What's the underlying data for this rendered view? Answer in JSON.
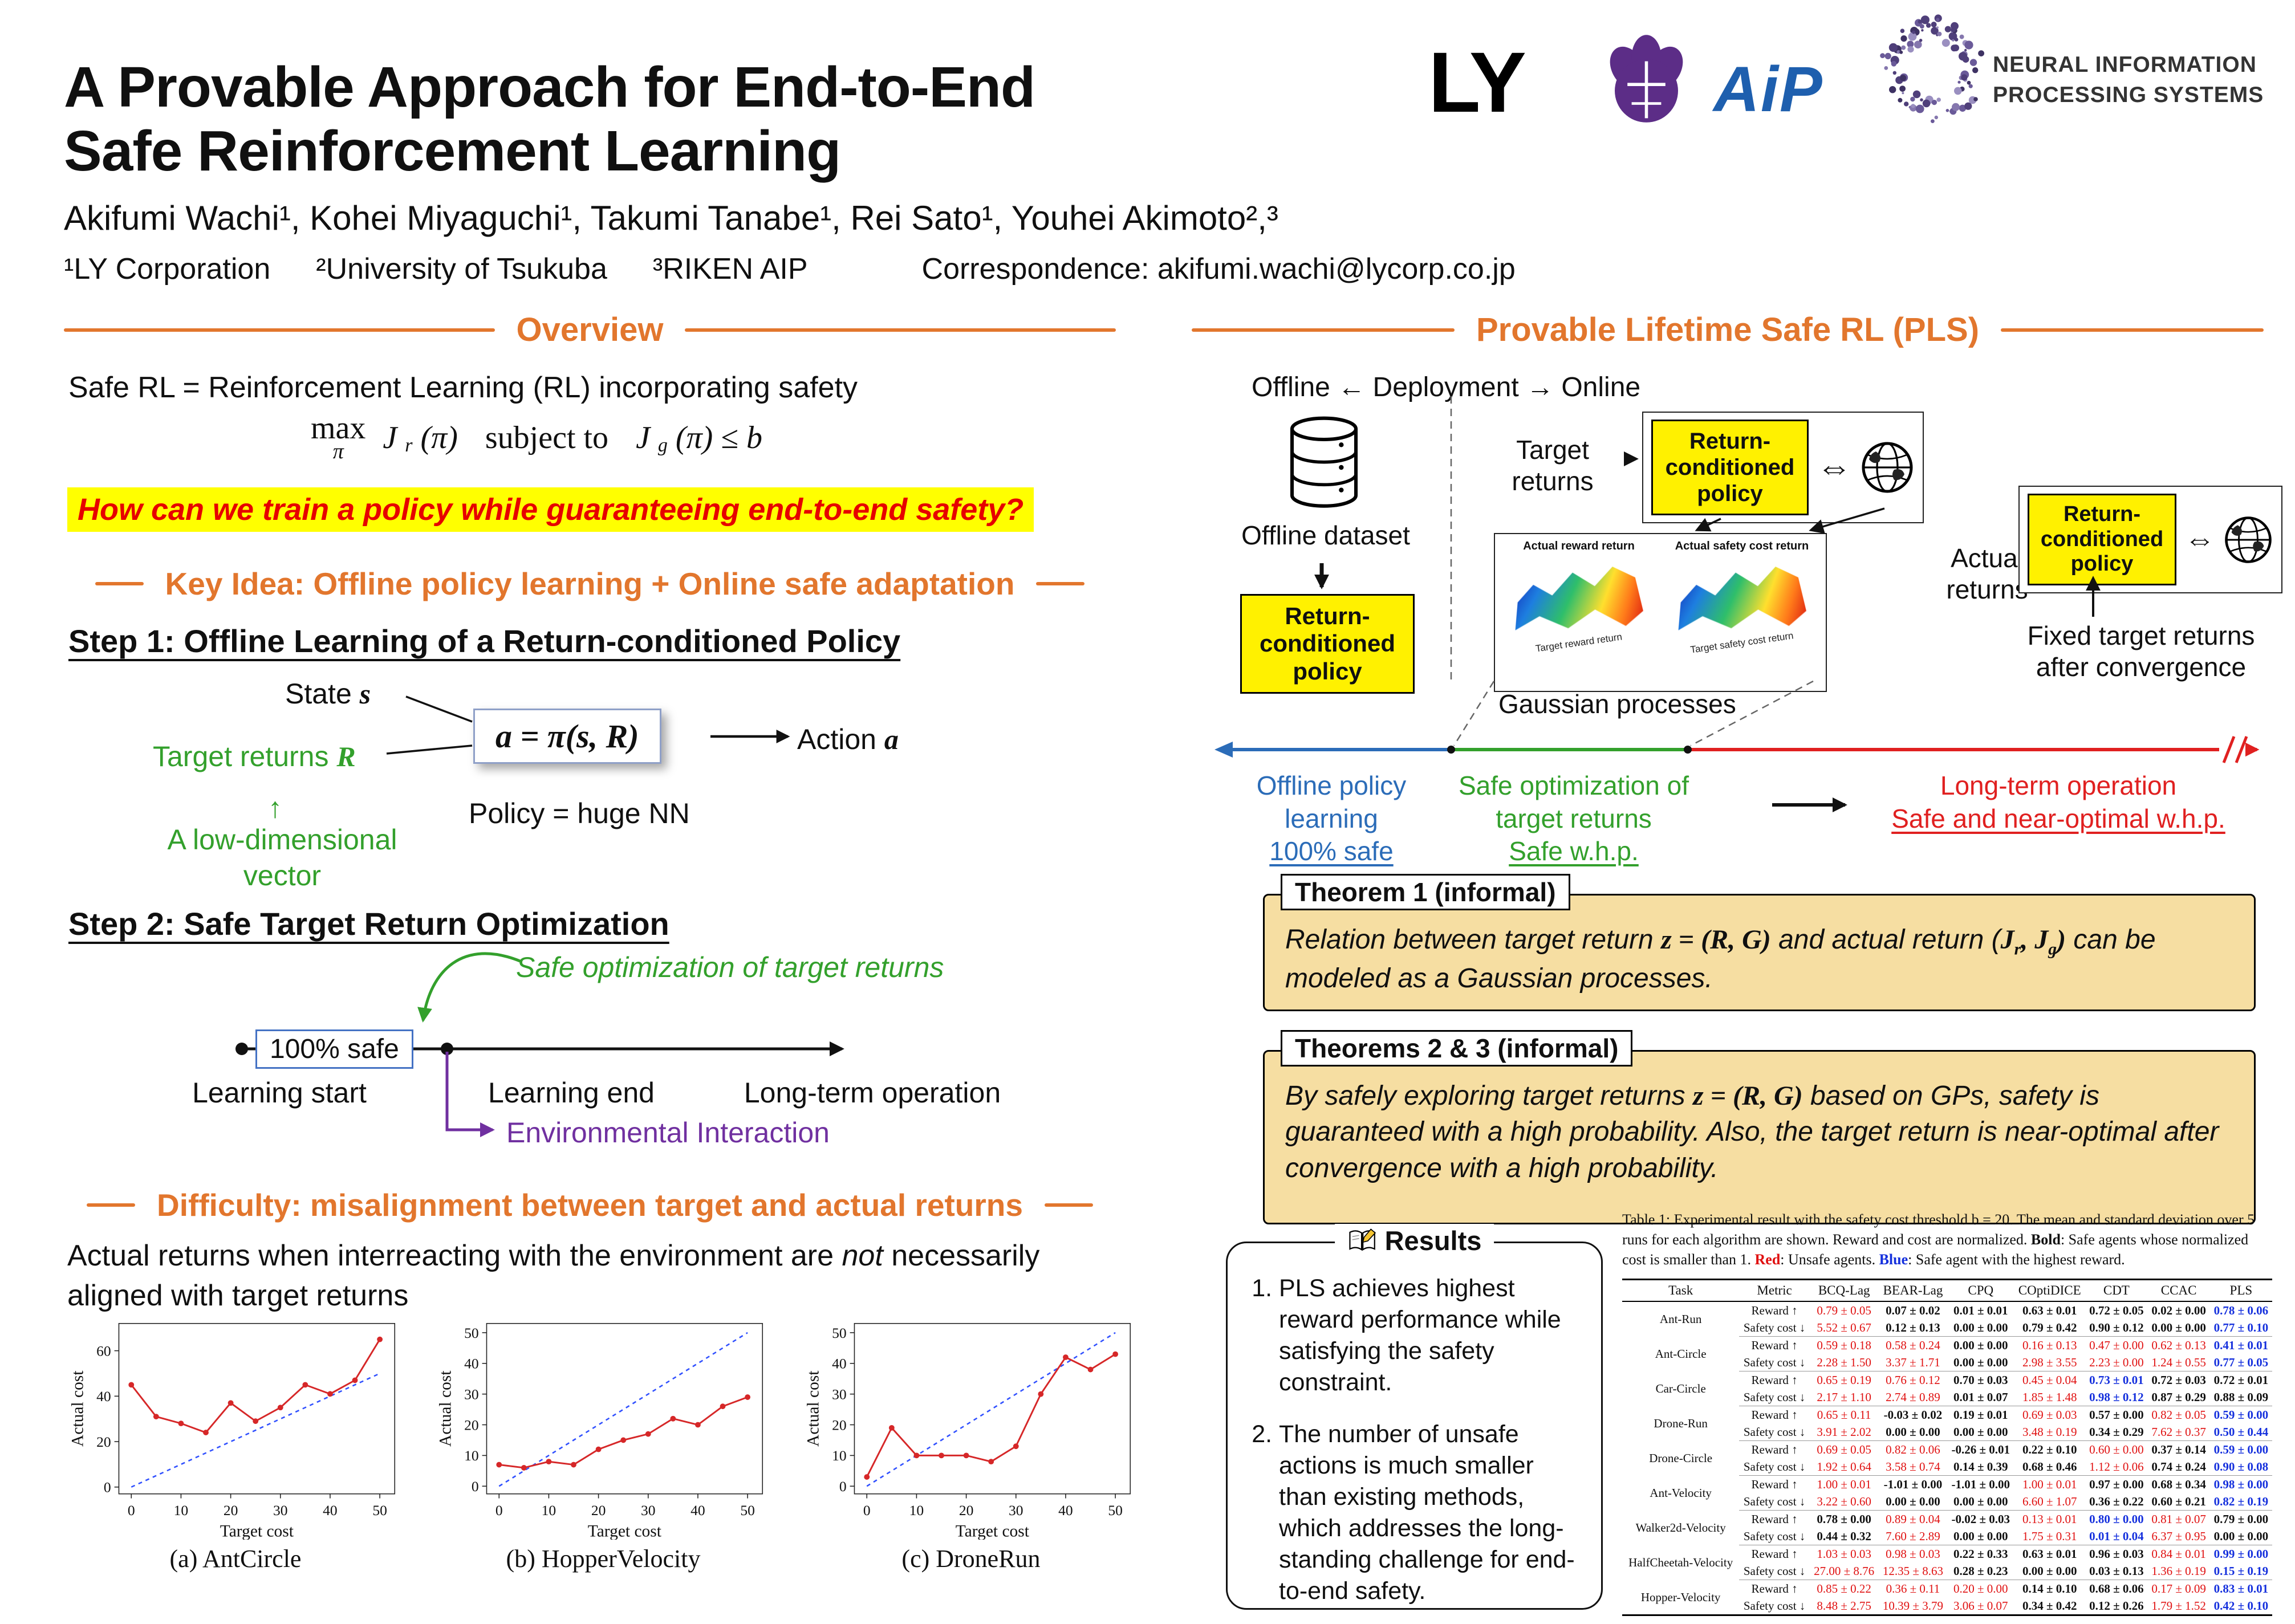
{
  "colors": {
    "orange": "#E2762D",
    "green": "#33A02C",
    "purple": "#7030A0",
    "blue": "#2B6CB8",
    "red": "#E02020",
    "highlight_bg": "#FFFF00",
    "theorem_bg": "#F6DEA2",
    "policy_box_bg": "#FFF100"
  },
  "header": {
    "title_line1": "A Provable Approach for End-to-End",
    "title_line2": "Safe Reinforcement Learning",
    "authors": "Akifumi Wachi¹, Kohei Miyaguchi¹, Takumi Tanabe¹, Rei Sato¹, Youhei Akimoto²,³",
    "affiliations": [
      "¹LY Corporation",
      "²University of Tsukuba",
      "³RIKEN AIP"
    ],
    "correspondence": "Correspondence: akifumi.wachi@lycorp.co.jp",
    "logos": {
      "ly": "LY",
      "aip": "AiP",
      "neurips_line1": "NEURAL INFORMATION",
      "neurips_line2": "PROCESSING SYSTEMS"
    }
  },
  "left": {
    "overview": {
      "heading": "Overview",
      "intro": "Safe RL = Reinforcement Learning (RL) incorporating safety",
      "math": {
        "op": "max",
        "op_sub": "π",
        "f1": "J",
        "f1_sub": "r",
        "f1_args": "(π)",
        "connective": "subject to",
        "f2": "J",
        "f2_sub": "g",
        "f2_args": "(π) ≤ b"
      },
      "question": "How can we train a policy  while guaranteeing end-to-end safety?"
    },
    "key_idea": "Key Idea: Offline policy learning + Online safe adaptation",
    "step1": {
      "heading": "Step 1: Offline Learning of a Return-conditioned Policy",
      "state": {
        "text": "State ",
        "sym": "s"
      },
      "target": {
        "text": "Target returns ",
        "sym": "R"
      },
      "box": "a = π(s, R)",
      "action": {
        "text": "Action ",
        "sym": "a"
      },
      "policy_note": "Policy = huge NN",
      "up_arrow": "↑",
      "low_dim": "A low-dimensional vector"
    },
    "step2": {
      "heading": "Step 2:  Safe Target Return Optimization",
      "safe_opt": "Safe optimization of target returns",
      "safe_box": "100% safe",
      "labels": [
        "Learning start",
        "Learning end",
        "Long-term operation"
      ],
      "env": "Environmental Interaction"
    },
    "difficulty": {
      "heading": "Difficulty: misalignment between target and actual returns",
      "para": [
        "Actual returns when interreacting with the environment are ",
        "not",
        " necessarily aligned with target returns"
      ]
    }
  },
  "right": {
    "heading": "Provable Lifetime Safe RL (PLS)",
    "deployment": "Offline ← Deployment → Online",
    "offline_dataset": "Offline dataset",
    "rc_policy": "Return-conditioned policy",
    "target_returns": "Target returns",
    "actual_returns": "Actual returns",
    "gp": {
      "label": "Gaussian processes",
      "plot1": "Actual reward return",
      "plot2": "Actual safety cost return",
      "axis1": "Target reward return",
      "axis2": "Target safety cost return"
    },
    "fixed": "Fixed target returns after convergence",
    "timeline": {
      "phase1": {
        "label": "Offline policy learning",
        "sub": "100% safe"
      },
      "phase2": {
        "label": "Safe optimization of target returns",
        "sub": "Safe w.h.p."
      },
      "phase3": {
        "label": "Long-term operation",
        "sub": "Safe and near-optimal w.h.p."
      }
    },
    "theorem1": {
      "title": "Theorem 1 (informal)",
      "body": [
        "Relation between target return ",
        "z = (R, G)",
        " and actual return (",
        "J",
        "r",
        ", J",
        "g",
        ")",
        " can be modeled as a Gaussian processes."
      ]
    },
    "theorems23": {
      "title": "Theorems 2 & 3 (informal)",
      "body": [
        "By safely exploring target returns ",
        "z = (R, G)",
        " based on GPs, safety is guaranteed with a high probability. Also, the target return is near-optimal after convergence with a high probability."
      ]
    },
    "results": {
      "title": "Results",
      "items": [
        "PLS achieves highest reward performance while satisfying the safety constraint.",
        "The number of unsafe actions is much smaller than existing methods, which addresses the long-standing challenge for end-to-end safety."
      ]
    },
    "table": {
      "caption": [
        "Table 1: Experimental result with the safety cost threshold b = 20. The mean and standard de­viation over 5 runs for each algorithm are shown. Reward and cost are normalized. ",
        "Bold",
        ": Safe agents whose normalized cost is smaller than 1. ",
        "Red",
        ": Unsafe agents. ",
        "Blue",
        ": Safe agent with the highest reward."
      ],
      "columns": [
        "Task",
        "Metric",
        "BCQ-Lag",
        "BEAR-Lag",
        "CPQ",
        "COptiDICE",
        "CDT",
        "CCAC",
        "PLS"
      ],
      "metric_labels": [
        "Reward ↑",
        "Safety cost ↓"
      ],
      "rows": [
        {
          "task": "Ant-Run",
          "reward": [
            [
              "0.79 ± 0.05",
              "red"
            ],
            [
              "0.07 ± 0.02",
              "bold"
            ],
            [
              "0.01 ± 0.01",
              "bold"
            ],
            [
              "0.63 ± 0.01",
              "bold"
            ],
            [
              "0.72 ± 0.05",
              "bold"
            ],
            [
              "0.02 ± 0.00",
              "bold"
            ],
            [
              "0.78 ± 0.06",
              "blue"
            ]
          ],
          "cost": [
            [
              "5.52 ± 0.67",
              "red"
            ],
            [
              "0.12 ± 0.13",
              "bold"
            ],
            [
              "0.00 ± 0.00",
              "bold"
            ],
            [
              "0.79 ± 0.42",
              "bold"
            ],
            [
              "0.90 ± 0.12",
              "bold"
            ],
            [
              "0.00 ± 0.00",
              "bold"
            ],
            [
              "0.77 ± 0.10",
              "blue"
            ]
          ]
        },
        {
          "task": "Ant-Circle",
          "reward": [
            [
              "0.59 ± 0.18",
              "red"
            ],
            [
              "0.58 ± 0.24",
              "red"
            ],
            [
              "0.00 ± 0.00",
              "bold"
            ],
            [
              "0.16 ± 0.13",
              "red"
            ],
            [
              "0.47 ± 0.00",
              "red"
            ],
            [
              "0.62 ± 0.13",
              "red"
            ],
            [
              "0.41 ± 0.01",
              "blue"
            ]
          ],
          "cost": [
            [
              "2.28 ± 1.50",
              "red"
            ],
            [
              "3.37 ± 1.71",
              "red"
            ],
            [
              "0.00 ± 0.00",
              "bold"
            ],
            [
              "2.98 ± 3.55",
              "red"
            ],
            [
              "2.23 ± 0.00",
              "red"
            ],
            [
              "1.24 ± 0.55",
              "red"
            ],
            [
              "0.77 ± 0.05",
              "blue"
            ]
          ]
        },
        {
          "task": "Car-Circle",
          "reward": [
            [
              "0.65 ± 0.19",
              "red"
            ],
            [
              "0.76 ± 0.12",
              "red"
            ],
            [
              "0.70 ± 0.03",
              "bold"
            ],
            [
              "0.45 ± 0.04",
              "red"
            ],
            [
              "0.73 ± 0.01",
              "blue"
            ],
            [
              "0.72 ± 0.03",
              "bold"
            ],
            [
              "0.72 ± 0.01",
              "bold"
            ]
          ],
          "cost": [
            [
              "2.17 ± 1.10",
              "red"
            ],
            [
              "2.74 ± 0.89",
              "red"
            ],
            [
              "0.01 ± 0.07",
              "bold"
            ],
            [
              "1.85 ± 1.48",
              "red"
            ],
            [
              "0.98 ± 0.12",
              "blue"
            ],
            [
              "0.87 ± 0.29",
              "bold"
            ],
            [
              "0.88 ± 0.09",
              "bold"
            ]
          ]
        },
        {
          "task": "Drone-Run",
          "reward": [
            [
              "0.65 ± 0.11",
              "red"
            ],
            [
              "-0.03 ± 0.02",
              "bold"
            ],
            [
              "0.19 ± 0.01",
              "bold"
            ],
            [
              "0.69 ± 0.03",
              "red"
            ],
            [
              "0.57 ± 0.00",
              "bold"
            ],
            [
              "0.82 ± 0.05",
              "red"
            ],
            [
              "0.59 ± 0.00",
              "blue"
            ]
          ],
          "cost": [
            [
              "3.91 ± 2.02",
              "red"
            ],
            [
              "0.00 ± 0.00",
              "bold"
            ],
            [
              "0.00 ± 0.00",
              "bold"
            ],
            [
              "3.48 ± 0.19",
              "red"
            ],
            [
              "0.34 ± 0.29",
              "bold"
            ],
            [
              "7.62 ± 0.37",
              "red"
            ],
            [
              "0.50 ± 0.44",
              "blue"
            ]
          ]
        },
        {
          "task": "Drone-Circle",
          "reward": [
            [
              "0.69 ± 0.05",
              "red"
            ],
            [
              "0.82 ± 0.06",
              "red"
            ],
            [
              "-0.26 ± 0.01",
              "bold"
            ],
            [
              "0.22 ± 0.10",
              "bold"
            ],
            [
              "0.60 ± 0.00",
              "red"
            ],
            [
              "0.37 ± 0.14",
              "bold"
            ],
            [
              "0.59 ± 0.00",
              "blue"
            ]
          ],
          "cost": [
            [
              "1.92 ± 0.64",
              "red"
            ],
            [
              "3.58 ± 0.74",
              "red"
            ],
            [
              "0.14 ± 0.39",
              "bold"
            ],
            [
              "0.68 ± 0.46",
              "bold"
            ],
            [
              "1.12 ± 0.06",
              "red"
            ],
            [
              "0.74 ± 0.24",
              "bold"
            ],
            [
              "0.90 ± 0.08",
              "blue"
            ]
          ]
        },
        {
          "task": "Ant-Velocity",
          "reward": [
            [
              "1.00 ± 0.01",
              "red"
            ],
            [
              "-1.01 ± 0.00",
              "bold"
            ],
            [
              "-1.01 ± 0.00",
              "bold"
            ],
            [
              "1.00 ± 0.01",
              "red"
            ],
            [
              "0.97 ± 0.00",
              "bold"
            ],
            [
              "0.68 ± 0.34",
              "bold"
            ],
            [
              "0.98 ± 0.00",
              "blue"
            ]
          ],
          "cost": [
            [
              "3.22 ± 0.60",
              "red"
            ],
            [
              "0.00 ± 0.00",
              "bold"
            ],
            [
              "0.00 ± 0.00",
              "bold"
            ],
            [
              "6.60 ± 1.07",
              "red"
            ],
            [
              "0.36 ± 0.22",
              "bold"
            ],
            [
              "0.60 ± 0.21",
              "bold"
            ],
            [
              "0.82 ± 0.19",
              "blue"
            ]
          ]
        },
        {
          "task": "Walker2d-Velocity",
          "reward": [
            [
              "0.78 ± 0.00",
              "bold"
            ],
            [
              "0.89 ± 0.04",
              "red"
            ],
            [
              "-0.02 ± 0.03",
              "bold"
            ],
            [
              "0.13 ± 0.01",
              "red"
            ],
            [
              "0.80 ± 0.00",
              "blue"
            ],
            [
              "0.81 ± 0.07",
              "red"
            ],
            [
              "0.79 ± 0.00",
              "bold"
            ]
          ],
          "cost": [
            [
              "0.44 ± 0.32",
              "bold"
            ],
            [
              "7.60 ± 2.89",
              "red"
            ],
            [
              "0.00 ± 0.00",
              "bold"
            ],
            [
              "1.75 ± 0.31",
              "red"
            ],
            [
              "0.01 ± 0.04",
              "blue"
            ],
            [
              "6.37 ± 0.95",
              "red"
            ],
            [
              "0.00 ± 0.00",
              "bold"
            ]
          ]
        },
        {
          "task": "HalfCheetah-Velocity",
          "reward": [
            [
              "1.03 ± 0.03",
              "red"
            ],
            [
              "0.98 ± 0.03",
              "red"
            ],
            [
              "0.22 ± 0.33",
              "bold"
            ],
            [
              "0.63 ± 0.01",
              "bold"
            ],
            [
              "0.96 ± 0.03",
              "bold"
            ],
            [
              "0.84 ± 0.01",
              "red"
            ],
            [
              "0.99 ± 0.00",
              "blue"
            ]
          ],
          "cost": [
            [
              "27.00 ± 8.76",
              "red"
            ],
            [
              "12.35 ± 8.63",
              "red"
            ],
            [
              "0.28 ± 0.23",
              "bold"
            ],
            [
              "0.00 ± 0.00",
              "bold"
            ],
            [
              "0.03 ± 0.13",
              "bold"
            ],
            [
              "1.36 ± 0.19",
              "red"
            ],
            [
              "0.15 ± 0.19",
              "blue"
            ]
          ]
        },
        {
          "task": "Hopper-Velocity",
          "reward": [
            [
              "0.85 ± 0.22",
              "red"
            ],
            [
              "0.36 ± 0.11",
              "red"
            ],
            [
              "0.20 ± 0.00",
              "red"
            ],
            [
              "0.14 ± 0.10",
              "bold"
            ],
            [
              "0.68 ± 0.06",
              "bold"
            ],
            [
              "0.17 ± 0.09",
              "red"
            ],
            [
              "0.83 ± 0.01",
              "blue"
            ]
          ],
          "cost": [
            [
              "8.48 ± 2.75",
              "red"
            ],
            [
              "10.39 ± 3.79",
              "red"
            ],
            [
              "3.06 ± 0.07",
              "red"
            ],
            [
              "0.34 ± 0.42",
              "bold"
            ],
            [
              "0.12 ± 0.26",
              "bold"
            ],
            [
              "1.79 ± 1.52",
              "red"
            ],
            [
              "0.42 ± 0.10",
              "blue"
            ]
          ]
        }
      ]
    }
  },
  "chart_data": [
    {
      "type": "line",
      "title": "(a) AntCircle",
      "xlabel": "Target cost",
      "ylabel": "Actual cost",
      "x": [
        0,
        5,
        10,
        15,
        20,
        25,
        30,
        35,
        40,
        45,
        50
      ],
      "series": [
        {
          "name": "actual cost",
          "values": [
            45,
            31,
            28,
            24,
            37,
            29,
            35,
            45,
            41,
            47,
            65
          ]
        },
        {
          "name": "target = actual reference",
          "values": [
            0,
            5,
            10,
            15,
            20,
            25,
            30,
            35,
            40,
            45,
            50
          ]
        }
      ],
      "xticks": [
        0,
        10,
        20,
        30,
        40,
        50
      ],
      "yticks": [
        0,
        20,
        40,
        60
      ],
      "xlim": [
        -2.5,
        53
      ],
      "ylim": [
        -3,
        72
      ],
      "grid": false,
      "legend": "none"
    },
    {
      "type": "line",
      "title": "(b) HopperVelocity",
      "xlabel": "Target cost",
      "ylabel": "Actual cost",
      "x": [
        0,
        5,
        10,
        15,
        20,
        25,
        30,
        35,
        40,
        45,
        50
      ],
      "series": [
        {
          "name": "actual cost",
          "values": [
            7,
            6,
            8,
            7,
            12,
            15,
            17,
            22,
            20,
            26,
            29
          ]
        },
        {
          "name": "target = actual reference",
          "values": [
            0,
            5,
            10,
            15,
            20,
            25,
            30,
            35,
            40,
            45,
            50
          ]
        }
      ],
      "xticks": [
        0,
        10,
        20,
        30,
        40,
        50
      ],
      "yticks": [
        0,
        10,
        20,
        30,
        40,
        50
      ],
      "xlim": [
        -2.5,
        53
      ],
      "ylim": [
        -2.5,
        53
      ],
      "grid": false,
      "legend": "none"
    },
    {
      "type": "line",
      "title": "(c) DroneRun",
      "xlabel": "Target cost",
      "ylabel": "Actual cost",
      "x": [
        0,
        5,
        10,
        15,
        20,
        25,
        30,
        35,
        40,
        45,
        50
      ],
      "series": [
        {
          "name": "actual cost",
          "values": [
            3,
            19,
            10,
            10,
            10,
            8,
            13,
            30,
            42,
            38,
            43
          ]
        },
        {
          "name": "target = actual reference",
          "values": [
            0,
            5,
            10,
            15,
            20,
            25,
            30,
            35,
            40,
            45,
            50
          ]
        }
      ],
      "xticks": [
        0,
        10,
        20,
        30,
        40,
        50
      ],
      "yticks": [
        0,
        10,
        20,
        30,
        40,
        50
      ],
      "xlim": [
        -2.5,
        53
      ],
      "ylim": [
        -2.5,
        53
      ],
      "grid": false,
      "legend": "none"
    }
  ]
}
